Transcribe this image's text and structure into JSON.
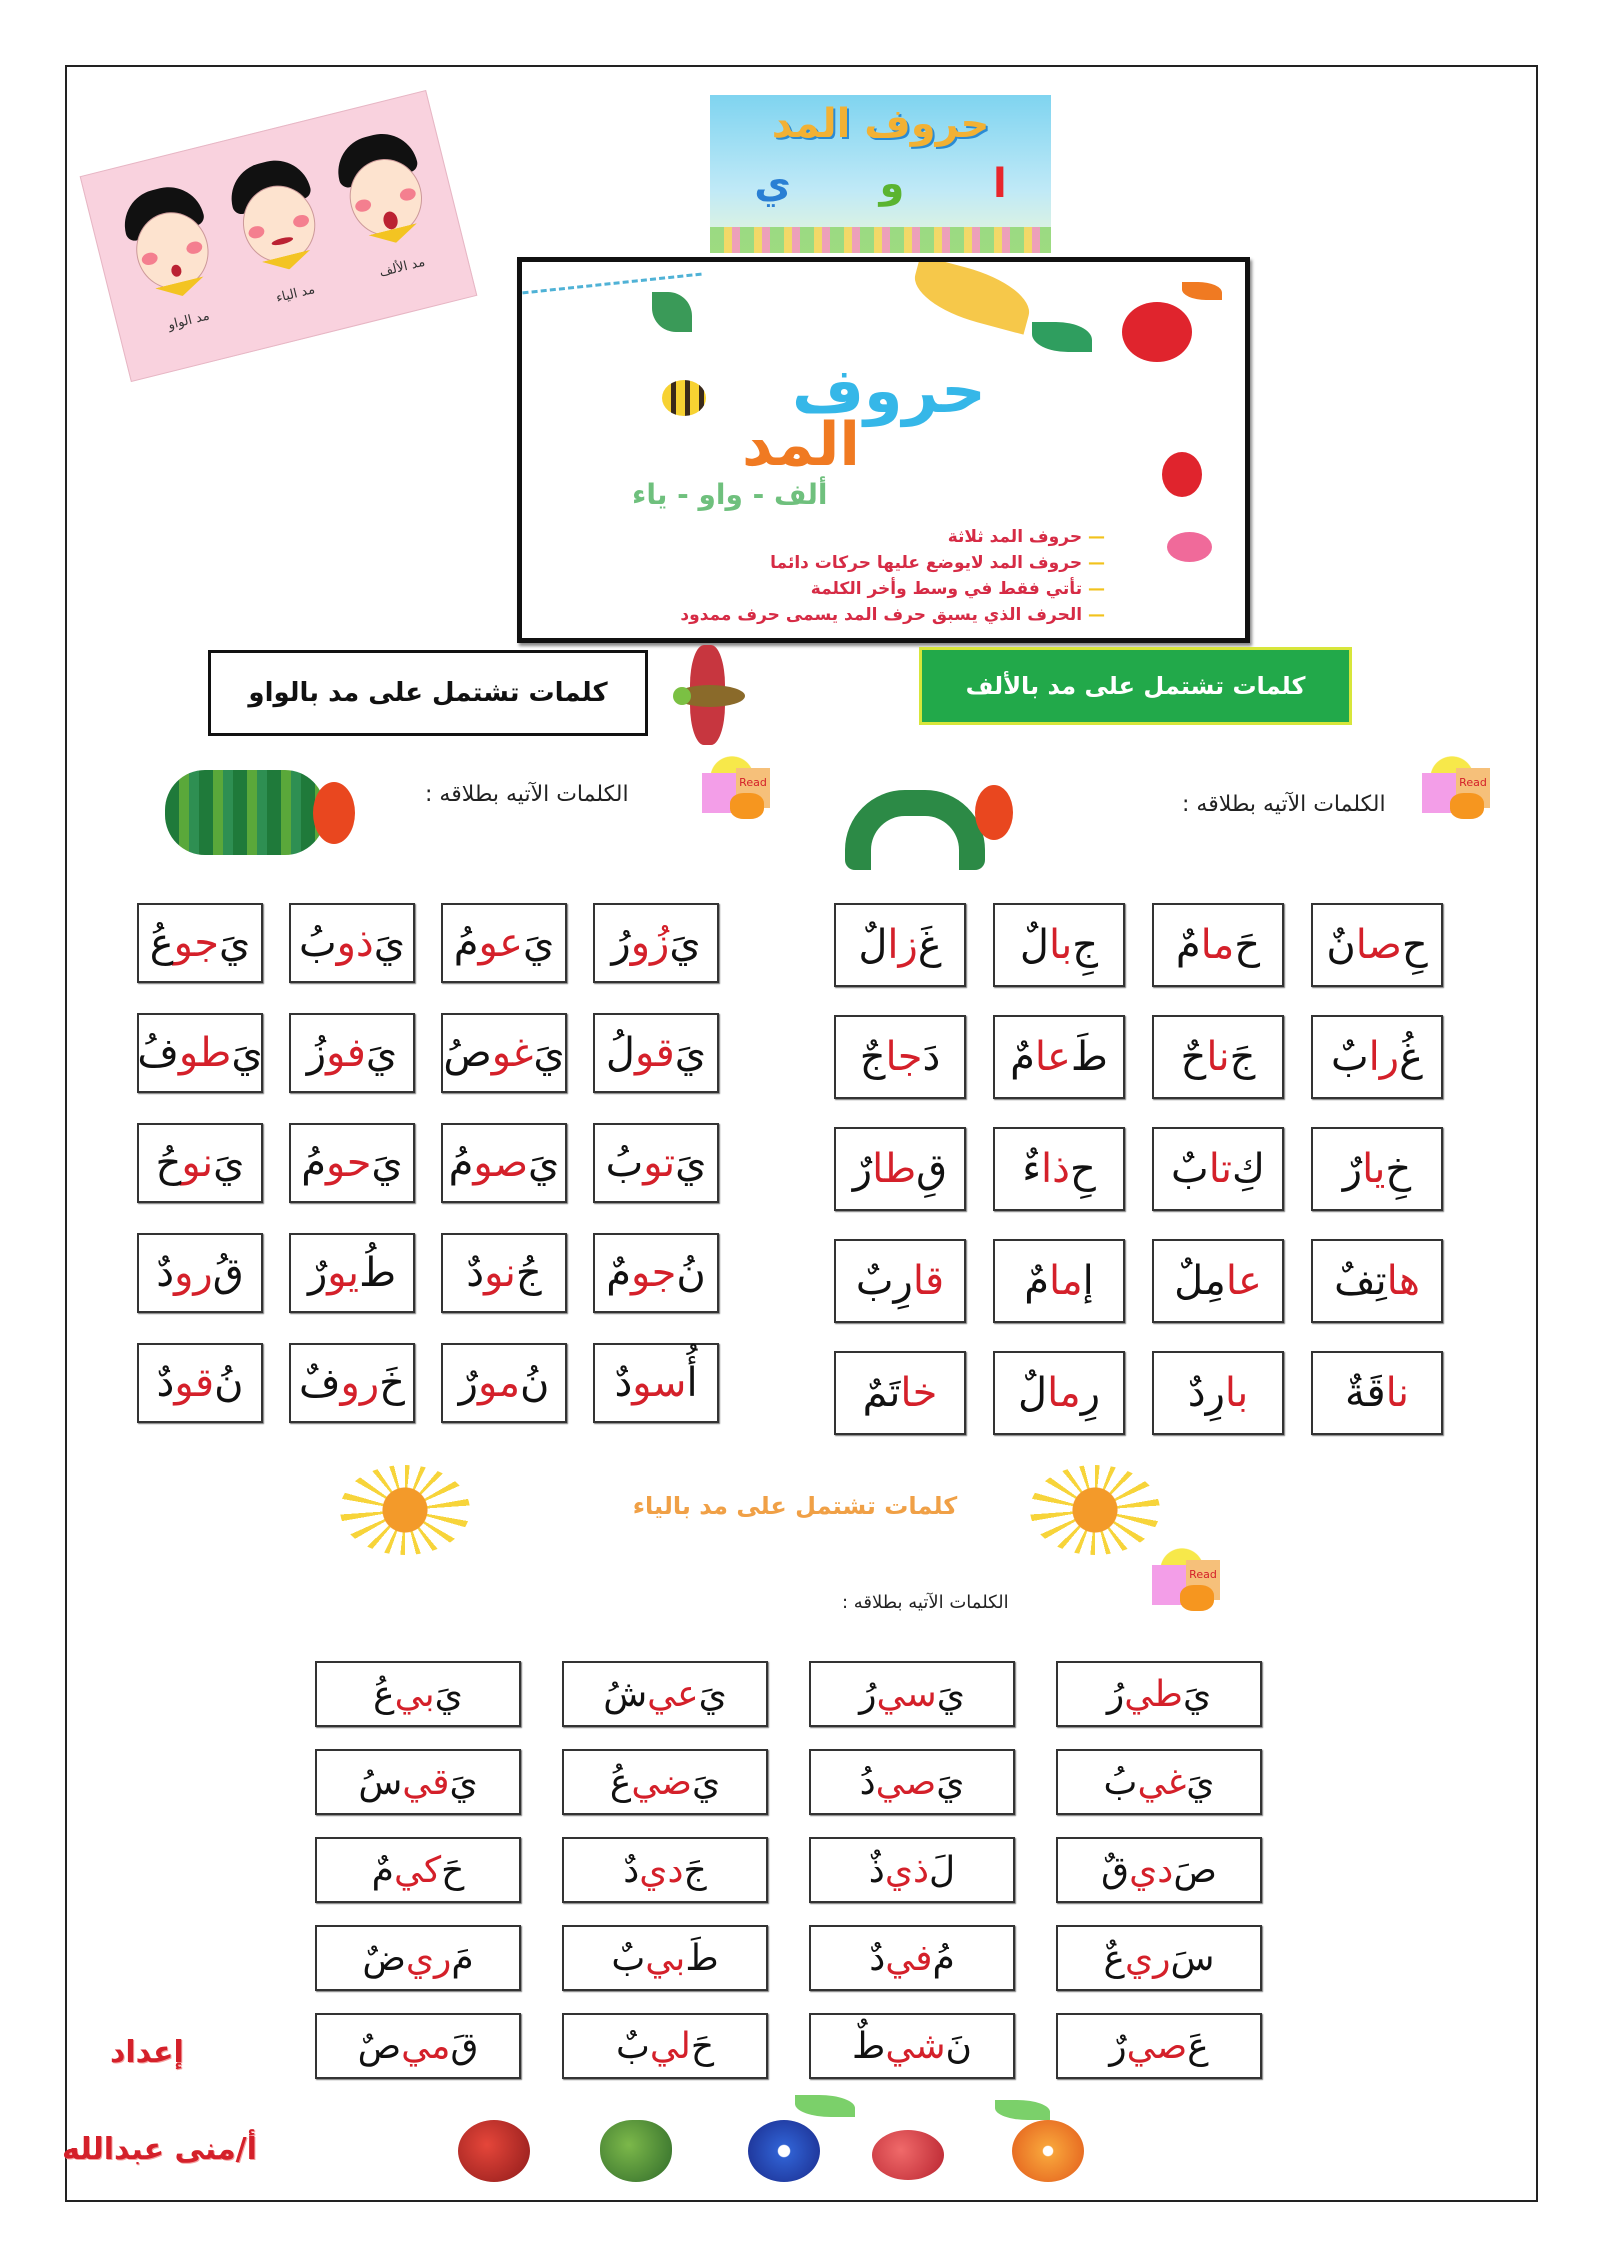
{
  "banner": {
    "title": "حروف المد",
    "letters": [
      "ا",
      "و",
      "ي"
    ],
    "letter_colors": [
      "#e8262c",
      "#5bb431",
      "#2a7fd4"
    ]
  },
  "kids_image": {
    "labels": [
      "مد الألف",
      "مد الياء",
      "مد الواو"
    ]
  },
  "info_card": {
    "title_line1": "حروف",
    "title_line2": "المد",
    "subtitle": "ألف - واو - ياء",
    "rules": [
      "حروف المد ثلاثة",
      "حروف المد لايوضع عليها حركات دائما",
      "تأتي فقط في وسط وأخر الكلمة",
      "الحرف الذي يسبق حرف المد يسمى حرف ممدود"
    ]
  },
  "sections": {
    "waw": {
      "heading": "كلمات تشتمل على مد بالواو",
      "instruction": "الكلمات الآتيه بطلاقه :",
      "words": [
        [
          "يَ",
          "زُو",
          "رُ"
        ],
        [
          "يَ",
          "عو",
          "مُ"
        ],
        [
          "يَ",
          "ذو",
          "بُ"
        ],
        [
          "يَ",
          "جو",
          "عُ"
        ],
        [
          "يَ",
          "قو",
          "لُ"
        ],
        [
          "يَ",
          "غو",
          "صُ"
        ],
        [
          "يَ",
          "فو",
          "زُ"
        ],
        [
          "يَ",
          "طو",
          "فُ"
        ],
        [
          "يَ",
          "تو",
          "بُ"
        ],
        [
          "يَ",
          "صو",
          "مُ"
        ],
        [
          "يَ",
          "حو",
          "مُ"
        ],
        [
          "يَ",
          "نو",
          "حُ"
        ],
        [
          "نُ",
          "جو",
          "مٌ"
        ],
        [
          "جُ",
          "نو",
          "دٌ"
        ],
        [
          "طُ",
          "يو",
          "رٌ"
        ],
        [
          "قُ",
          "رو",
          "دٌ"
        ],
        [
          "أُ",
          "سو",
          "دٌ"
        ],
        [
          "نُ",
          "مو",
          "رٌ"
        ],
        [
          "خَ",
          "رو",
          "فٌ"
        ],
        [
          "نُ",
          "قو",
          "دٌ"
        ]
      ]
    },
    "alif": {
      "heading": "كلمات تشتمل على مد بالألف",
      "instruction": "الكلمات الآتيه بطلاقه :",
      "words": [
        [
          "حِ",
          "صا",
          "نٌ"
        ],
        [
          "حَ",
          "ما",
          "مٌ"
        ],
        [
          "جِ",
          "با",
          "لٌ"
        ],
        [
          "غَ",
          "زا",
          "لٌ"
        ],
        [
          "غُ",
          "را",
          "بٌ"
        ],
        [
          "جَ",
          "نا",
          "حٌ"
        ],
        [
          "طَ",
          "عا",
          "مٌ"
        ],
        [
          "دَ",
          "جا",
          "جٌ"
        ],
        [
          "خِ",
          "يا",
          "رٌ"
        ],
        [
          "كِ",
          "تا",
          "بٌ"
        ],
        [
          "حِ",
          "ذا",
          "ءٌ"
        ],
        [
          "قِ",
          "طا",
          "رٌ"
        ],
        [
          "",
          "ها",
          "تِفٌ"
        ],
        [
          "",
          "عا",
          "مِلٌ"
        ],
        [
          "إ",
          "ما",
          "مٌ"
        ],
        [
          "",
          "قا",
          "رِبٌ"
        ],
        [
          "",
          "نا",
          "قَةٌ"
        ],
        [
          "",
          "با",
          "رِدٌ"
        ],
        [
          "رِ",
          "ما",
          "لٌ"
        ],
        [
          "",
          "خا",
          "تَمٌ"
        ]
      ]
    },
    "ya": {
      "heading": "كلمات تشتمل على مد بالياء",
      "instruction": "الكلمات الآتيه بطلاقه :",
      "words": [
        [
          "يَ",
          "طي",
          "رُ"
        ],
        [
          "يَ",
          "سي",
          "رُ"
        ],
        [
          "يَ",
          "عي",
          "شُ"
        ],
        [
          "يَ",
          "بي",
          "عُ"
        ],
        [
          "يَ",
          "غي",
          "بُ"
        ],
        [
          "يَ",
          "صي",
          "دُ"
        ],
        [
          "يَ",
          "ضي",
          "عُ"
        ],
        [
          "يَ",
          "قي",
          "سُ"
        ],
        [
          "صَ",
          "دي",
          "قٌ"
        ],
        [
          "لَ",
          "ذي",
          "ذٌ"
        ],
        [
          "جَ",
          "دي",
          "دٌ"
        ],
        [
          "حَ",
          "كي",
          "مٌ"
        ],
        [
          "سَ",
          "ري",
          "عٌ"
        ],
        [
          "مُ",
          "في",
          "دٌ"
        ],
        [
          "طَ",
          "بي",
          "بٌ"
        ],
        [
          "مَ",
          "ري",
          "ضٌ"
        ],
        [
          "عَ",
          "صي",
          "رٌ"
        ],
        [
          "نَ",
          "شي",
          "طٌ"
        ],
        [
          "حَ",
          "لي",
          "بٌ"
        ],
        [
          "قَ",
          "مي",
          "صٌ"
        ]
      ]
    }
  },
  "read_icon_label": "Read",
  "credits": {
    "prepared_by": "إعداد",
    "author": "أ/منى عبدالله"
  },
  "colors": {
    "accent_red": "#d4202a",
    "alif_heading_bg": "#22a94a",
    "ya_heading": "#f0a046"
  }
}
